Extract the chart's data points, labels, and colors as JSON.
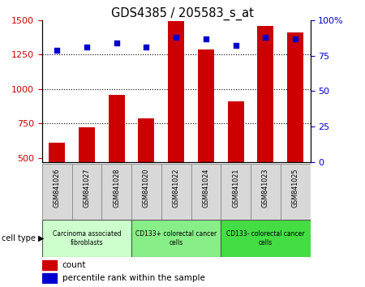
{
  "title": "GDS4385 / 205583_s_at",
  "samples": [
    "GSM841026",
    "GSM841027",
    "GSM841028",
    "GSM841020",
    "GSM841022",
    "GSM841024",
    "GSM841021",
    "GSM841023",
    "GSM841025"
  ],
  "counts": [
    610,
    720,
    960,
    790,
    1490,
    1290,
    910,
    1460,
    1410
  ],
  "percentile_ranks": [
    79,
    81,
    84,
    81,
    88,
    87,
    82,
    88,
    87
  ],
  "ylim_left": [
    470,
    1500
  ],
  "ylim_right": [
    0,
    100
  ],
  "yticks_left": [
    500,
    750,
    1000,
    1250,
    1500
  ],
  "yticks_right": [
    0,
    25,
    50,
    75,
    100
  ],
  "bar_color": "#cc0000",
  "dot_color": "#0000cc",
  "background_color": "#ffffff",
  "grid_color": "#000000",
  "cell_type_groups": [
    {
      "label": "Carcinoma associated\nfibroblasts",
      "start": 0,
      "end": 3,
      "color": "#ccffcc"
    },
    {
      "label": "CD133+ colorectal cancer\ncells",
      "start": 3,
      "end": 6,
      "color": "#99ee88"
    },
    {
      "label": "CD133- colorectal cancer\ncells",
      "start": 6,
      "end": 9,
      "color": "#44dd44"
    }
  ],
  "sample_box_color": "#d8d8d8",
  "sample_box_edge": "#888888",
  "legend_count_label": "count",
  "legend_pct_label": "percentile rank within the sample",
  "cell_type_label": "cell type",
  "tick_label_color_left": "#cc0000",
  "tick_label_color_right": "#0000cc"
}
